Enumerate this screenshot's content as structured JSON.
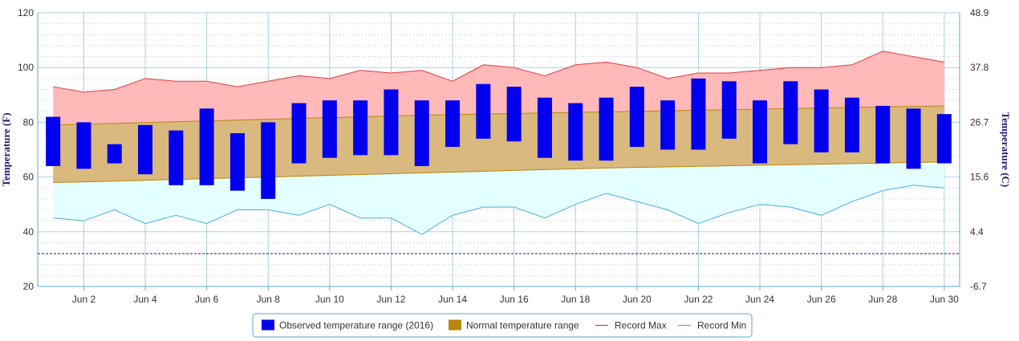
{
  "chart_data": {
    "type": "bar",
    "title": "",
    "ylabel": "Temperature (F)",
    "y2label": "Temperature (C)",
    "ylim": [
      20,
      120
    ],
    "y_ticks": [
      "20",
      "40",
      "60",
      "80",
      "100",
      "120"
    ],
    "y2_ticks": [
      "-6.7",
      "4.4",
      "15.6",
      "26.7",
      "37.8",
      "48.9"
    ],
    "x_tick_labels": [
      "Jun 2",
      "Jun 4",
      "Jun 6",
      "Jun 8",
      "Jun 10",
      "Jun 12",
      "Jun 14",
      "Jun 16",
      "Jun 18",
      "Jun 20",
      "Jun 22",
      "Jun 24",
      "Jun 26",
      "Jun 28",
      "Jun 30"
    ],
    "x_tick_days": [
      2,
      4,
      6,
      8,
      10,
      12,
      14,
      16,
      18,
      20,
      22,
      24,
      26,
      28,
      30
    ],
    "days": [
      1,
      2,
      3,
      4,
      5,
      6,
      7,
      8,
      9,
      10,
      11,
      12,
      13,
      14,
      15,
      16,
      17,
      18,
      19,
      20,
      21,
      22,
      23,
      24,
      25,
      26,
      27,
      28,
      29,
      30
    ],
    "freezing_line": 32,
    "grid": true,
    "legend_position": "bottom-center",
    "series": [
      {
        "name": "Observed temperature range (2016)",
        "kind": "range-bar",
        "color": "#0000ee",
        "low": [
          64,
          63,
          65,
          61,
          57,
          57,
          55,
          52,
          65,
          67,
          68,
          68,
          64,
          71,
          74,
          73,
          67,
          66,
          66,
          71,
          70,
          70,
          74,
          65,
          72,
          69,
          69,
          65,
          63,
          65
        ],
        "high": [
          82,
          80,
          72,
          79,
          77,
          85,
          76,
          80,
          87,
          88,
          88,
          92,
          88,
          88,
          94,
          93,
          89,
          87,
          89,
          93,
          88,
          96,
          95,
          88,
          95,
          92,
          89,
          86,
          85,
          83
        ]
      },
      {
        "name": "Normal temperature range",
        "kind": "range-area",
        "color": "#b8860b",
        "low": [
          58,
          58.2,
          58.5,
          58.8,
          59.1,
          59.4,
          59.7,
          60,
          60.3,
          60.6,
          60.9,
          61.2,
          61.5,
          61.8,
          62.1,
          62.4,
          62.7,
          63,
          63.3,
          63.5,
          63.7,
          63.9,
          64.1,
          64.3,
          64.5,
          64.7,
          64.9,
          65.1,
          65.3,
          65.5
        ],
        "high": [
          79,
          79.3,
          79.6,
          79.9,
          80.2,
          80.5,
          80.8,
          81.1,
          81.4,
          81.7,
          82,
          82.3,
          82.6,
          82.8,
          83,
          83.2,
          83.4,
          83.6,
          83.8,
          84,
          84.2,
          84.4,
          84.6,
          84.8,
          85,
          85.2,
          85.4,
          85.6,
          85.8,
          86
        ]
      },
      {
        "name": "Record Max",
        "kind": "line",
        "color": "#e03c3c",
        "values": [
          93,
          91,
          92,
          96,
          95,
          95,
          93,
          95,
          97,
          96,
          99,
          98,
          99,
          95,
          101,
          100,
          97,
          101,
          102,
          100,
          96,
          98,
          98,
          99,
          100,
          100,
          101,
          106,
          104,
          102
        ]
      },
      {
        "name": "Record Min",
        "kind": "line",
        "color": "#4aaee0",
        "values": [
          45,
          44,
          48,
          43,
          46,
          43,
          48,
          48,
          46,
          50,
          45,
          45,
          39,
          46,
          49,
          49,
          45,
          50,
          54,
          51,
          48,
          43,
          47,
          50,
          49,
          46,
          51,
          55,
          57,
          56
        ]
      }
    ]
  },
  "colors": {
    "record_max_fill": "#ffb9b9",
    "record_min_fill": "#e4ffff",
    "normal_fill": "#d9b97e",
    "normal_stroke": "#b8860b",
    "freezing_line": "#1c1c6e",
    "grid": "#a8cfe6",
    "axis": "#5ba8d0",
    "legend_border": "#5ba8d0"
  }
}
